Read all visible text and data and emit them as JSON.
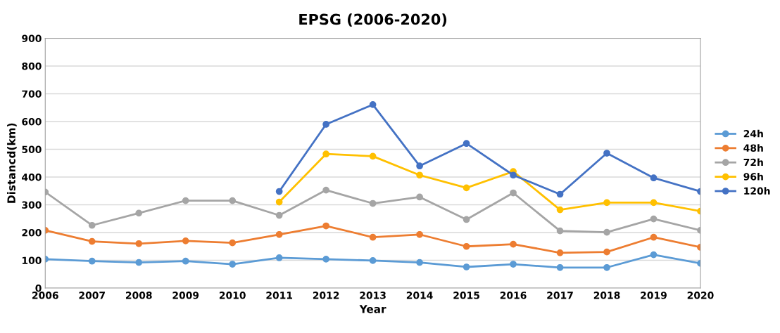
{
  "chart_data": {
    "type": "line",
    "title": "EPSG (2006-2020)",
    "xlabel": "Year",
    "ylabel": "Distancd(km)",
    "categories": [
      "2006",
      "2007",
      "2008",
      "2009",
      "2010",
      "2011",
      "2012",
      "2013",
      "2014",
      "2015",
      "2016",
      "2017",
      "2018",
      "2019",
      "2020"
    ],
    "series": [
      {
        "name": "24h",
        "color": "#5b9bd5",
        "values": [
          104,
          97,
          92,
          97,
          86,
          109,
          104,
          99,
          92,
          76,
          86,
          74,
          74,
          120,
          89
        ]
      },
      {
        "name": "48h",
        "color": "#ed7d31",
        "values": [
          208,
          168,
          160,
          170,
          163,
          193,
          224,
          183,
          193,
          150,
          158,
          127,
          130,
          183,
          147
        ]
      },
      {
        "name": "72h",
        "color": "#a5a5a5",
        "values": [
          346,
          226,
          270,
          315,
          315,
          262,
          353,
          305,
          328,
          247,
          343,
          206,
          201,
          249,
          208
        ]
      },
      {
        "name": "96h",
        "color": "#ffc000",
        "values": [
          null,
          null,
          null,
          null,
          null,
          310,
          483,
          475,
          407,
          361,
          420,
          282,
          308,
          308,
          277
        ]
      },
      {
        "name": "120h",
        "color": "#4472c4",
        "values": [
          null,
          null,
          null,
          null,
          null,
          348,
          590,
          661,
          440,
          521,
          407,
          338,
          486,
          397,
          348
        ]
      }
    ],
    "ylim": [
      0,
      900
    ],
    "yticks": [
      0,
      100,
      200,
      300,
      400,
      500,
      600,
      700,
      800,
      900
    ],
    "grid": "y",
    "legend": "right",
    "marker": "circle",
    "line_style": "solid"
  }
}
